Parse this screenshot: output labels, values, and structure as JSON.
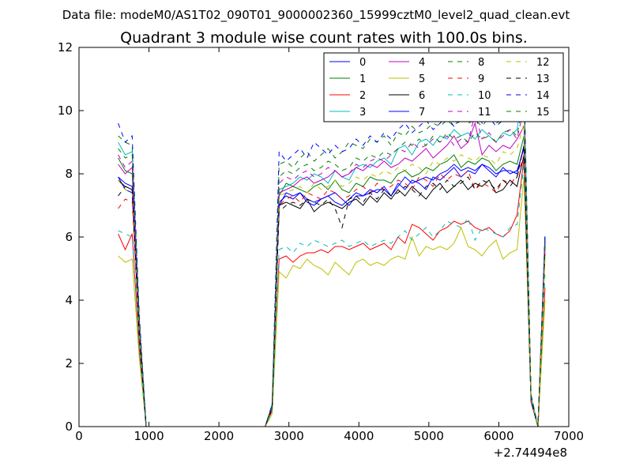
{
  "header": {
    "file_line": "Data file: modeM0/AS1T02_090T01_9000002360_15999cztM0_level2_quad_clean.evt"
  },
  "chart_data": {
    "type": "line",
    "title": "Quadrant 3 module wise count rates with 100.0s bins.",
    "xlabel": "",
    "ylabel": "",
    "x_offset_label": "+2.74494e8",
    "xlim": [
      0,
      7000
    ],
    "ylim": [
      0,
      12
    ],
    "x_ticks": [
      0,
      1000,
      2000,
      3000,
      4000,
      5000,
      6000,
      7000
    ],
    "y_ticks": [
      0,
      2,
      4,
      6,
      8,
      10,
      12
    ],
    "grid": false,
    "legend_placement": "top-right",
    "legend_columns": 4,
    "x": [
      560,
      660,
      760,
      860,
      960,
      1060,
      1160,
      1260,
      1360,
      1460,
      1560,
      1660,
      1760,
      1860,
      1960,
      2060,
      2160,
      2260,
      2360,
      2460,
      2560,
      2660,
      2760,
      2860,
      2960,
      3060,
      3160,
      3260,
      3360,
      3460,
      3560,
      3660,
      3760,
      3860,
      3960,
      4060,
      4160,
      4260,
      4360,
      4460,
      4560,
      4660,
      4760,
      4860,
      4960,
      5060,
      5160,
      5260,
      5360,
      5460,
      5560,
      5660,
      5760,
      5860,
      5960,
      6060,
      6160,
      6260,
      6360,
      6460,
      6560,
      6660
    ],
    "series": [
      {
        "name": "0",
        "color": "#0000ff",
        "dash": false,
        "values": [
          7.9,
          7.5,
          7.4,
          3.0,
          0.0,
          0.0,
          0.0,
          0.0,
          0.0,
          0.0,
          0.0,
          0.0,
          0.0,
          0.0,
          0.0,
          0.0,
          0.0,
          0.0,
          0.0,
          0.0,
          0.0,
          0.0,
          0.6,
          7.0,
          7.4,
          7.3,
          7.4,
          7.2,
          7.1,
          7.2,
          7.3,
          7.4,
          7.2,
          7.0,
          7.3,
          7.3,
          7.4,
          7.5,
          7.5,
          7.3,
          7.6,
          7.9,
          7.7,
          7.8,
          7.9,
          7.8,
          8.0,
          8.1,
          8.3,
          8.1,
          8.2,
          8.1,
          8.3,
          8.2,
          8.0,
          8.1,
          8.1,
          8.0,
          8.9,
          0.9,
          0.0,
          6.0
        ]
      },
      {
        "name": "1",
        "color": "#008000",
        "dash": false,
        "values": [
          8.5,
          8.1,
          8.0,
          3.1,
          0.0,
          0.0,
          0.0,
          0.0,
          0.0,
          0.0,
          0.0,
          0.0,
          0.0,
          0.0,
          0.0,
          0.0,
          0.0,
          0.0,
          0.0,
          0.0,
          0.0,
          0.0,
          0.6,
          7.3,
          7.7,
          7.6,
          7.5,
          7.4,
          7.6,
          7.7,
          7.5,
          7.8,
          7.5,
          7.4,
          7.7,
          7.6,
          7.9,
          7.8,
          7.8,
          7.7,
          8.0,
          8.1,
          7.9,
          8.0,
          8.2,
          8.1,
          8.3,
          8.4,
          8.6,
          8.2,
          8.4,
          8.3,
          8.5,
          8.4,
          8.1,
          8.3,
          8.4,
          8.3,
          9.2,
          0.9,
          0.0,
          5.8
        ]
      },
      {
        "name": "2",
        "color": "#ff0000",
        "dash": false,
        "values": [
          6.1,
          5.6,
          6.1,
          2.5,
          0.0,
          0.0,
          0.0,
          0.0,
          0.0,
          0.0,
          0.0,
          0.0,
          0.0,
          0.0,
          0.0,
          0.0,
          0.0,
          0.0,
          0.0,
          0.0,
          0.0,
          0.0,
          0.5,
          5.3,
          5.4,
          5.2,
          5.4,
          5.5,
          5.5,
          5.6,
          5.5,
          5.7,
          5.7,
          5.6,
          5.7,
          5.8,
          5.6,
          5.7,
          5.8,
          5.6,
          6.0,
          5.8,
          6.4,
          6.3,
          6.1,
          5.9,
          6.2,
          6.3,
          6.5,
          6.4,
          6.5,
          6.3,
          6.2,
          6.3,
          6.1,
          6.0,
          6.2,
          6.7,
          8.5,
          0.8,
          0.0,
          4.4
        ]
      },
      {
        "name": "3",
        "color": "#00bfbf",
        "dash": false,
        "values": [
          9.0,
          8.6,
          8.7,
          3.4,
          0.0,
          0.0,
          0.0,
          0.0,
          0.0,
          0.0,
          0.0,
          0.0,
          0.0,
          0.0,
          0.0,
          0.0,
          0.0,
          0.0,
          0.0,
          0.0,
          0.0,
          0.0,
          0.7,
          7.5,
          7.6,
          7.7,
          7.9,
          7.8,
          8.0,
          7.9,
          7.7,
          8.1,
          7.9,
          7.8,
          8.2,
          8.3,
          8.2,
          8.4,
          8.5,
          8.3,
          8.8,
          8.9,
          8.6,
          9.0,
          9.1,
          8.9,
          9.2,
          9.1,
          9.4,
          9.2,
          9.3,
          9.1,
          9.4,
          9.2,
          9.0,
          9.3,
          9.2,
          9.4,
          10.9,
          1.0,
          0.0,
          6.0
        ]
      },
      {
        "name": "4",
        "color": "#bf00bf",
        "dash": false,
        "values": [
          8.3,
          8.0,
          8.2,
          3.2,
          0.0,
          0.0,
          0.0,
          0.0,
          0.0,
          0.0,
          0.0,
          0.0,
          0.0,
          0.0,
          0.0,
          0.0,
          0.0,
          0.0,
          0.0,
          0.0,
          0.0,
          0.0,
          0.6,
          7.4,
          7.5,
          7.6,
          7.8,
          7.9,
          7.7,
          7.8,
          7.9,
          8.1,
          7.9,
          8.0,
          8.2,
          8.1,
          8.3,
          8.2,
          8.4,
          8.2,
          8.3,
          8.5,
          8.4,
          8.6,
          8.8,
          8.5,
          8.7,
          8.9,
          9.2,
          8.8,
          9.0,
          9.6,
          8.6,
          8.9,
          8.7,
          8.9,
          8.8,
          9.1,
          9.5,
          0.9,
          0.0,
          5.9
        ]
      },
      {
        "name": "5",
        "color": "#bfbf00",
        "dash": false,
        "values": [
          5.4,
          5.2,
          5.3,
          2.2,
          0.0,
          0.0,
          0.0,
          0.0,
          0.0,
          0.0,
          0.0,
          0.0,
          0.0,
          0.0,
          0.0,
          0.0,
          0.0,
          0.0,
          0.0,
          0.0,
          0.0,
          0.0,
          0.4,
          4.9,
          4.7,
          5.1,
          5.0,
          5.3,
          5.1,
          5.0,
          4.8,
          5.2,
          5.0,
          4.8,
          5.2,
          5.3,
          5.1,
          5.2,
          5.1,
          5.3,
          5.4,
          5.3,
          6.0,
          5.4,
          5.7,
          5.6,
          5.7,
          5.6,
          5.8,
          6.3,
          5.7,
          5.6,
          5.4,
          5.7,
          5.9,
          5.3,
          5.5,
          5.6,
          7.9,
          0.8,
          0.0,
          4.0
        ]
      },
      {
        "name": "6",
        "color": "#000000",
        "dash": false,
        "values": [
          7.8,
          7.6,
          7.5,
          3.0,
          0.0,
          0.0,
          0.0,
          0.0,
          0.0,
          0.0,
          0.0,
          0.0,
          0.0,
          0.0,
          0.0,
          0.0,
          0.0,
          0.0,
          0.0,
          0.0,
          0.0,
          0.0,
          0.6,
          7.0,
          7.1,
          7.0,
          6.9,
          7.2,
          6.8,
          7.0,
          7.1,
          7.0,
          6.9,
          7.1,
          7.2,
          7.0,
          7.3,
          7.1,
          7.4,
          7.2,
          7.5,
          7.3,
          7.6,
          7.4,
          7.2,
          7.5,
          7.7,
          7.4,
          7.6,
          7.8,
          7.5,
          7.7,
          7.6,
          7.8,
          7.4,
          7.5,
          7.8,
          7.6,
          8.6,
          0.8,
          0.0,
          5.7
        ]
      },
      {
        "name": "7",
        "color": "#0000ff",
        "dash": false,
        "values": [
          7.9,
          7.7,
          7.6,
          3.0,
          0.0,
          0.0,
          0.0,
          0.0,
          0.0,
          0.0,
          0.0,
          0.0,
          0.0,
          0.0,
          0.0,
          0.0,
          0.0,
          0.0,
          0.0,
          0.0,
          0.0,
          0.0,
          0.6,
          7.1,
          7.3,
          7.2,
          7.4,
          7.1,
          7.0,
          7.2,
          7.3,
          7.1,
          7.0,
          7.2,
          7.4,
          7.3,
          7.5,
          7.4,
          7.6,
          7.3,
          7.7,
          7.5,
          7.8,
          7.7,
          7.5,
          7.9,
          7.8,
          8.0,
          8.2,
          7.9,
          8.1,
          8.0,
          8.3,
          8.1,
          7.9,
          8.2,
          8.0,
          8.1,
          8.8,
          0.8,
          0.0,
          5.9
        ]
      },
      {
        "name": "8",
        "color": "#008000",
        "dash": true,
        "values": [
          9.2,
          9.0,
          8.9,
          3.5,
          0.0,
          0.0,
          0.0,
          0.0,
          0.0,
          0.0,
          0.0,
          0.0,
          0.0,
          0.0,
          0.0,
          0.0,
          0.0,
          0.0,
          0.0,
          0.0,
          0.0,
          0.0,
          0.7,
          8.3,
          8.4,
          8.2,
          8.5,
          8.7,
          8.4,
          8.6,
          8.8,
          8.5,
          8.7,
          9.0,
          8.9,
          8.8,
          9.1,
          9.0,
          9.2,
          8.9,
          9.3,
          9.2,
          9.5,
          9.3,
          9.4,
          9.6,
          9.5,
          9.7,
          9.5,
          9.8,
          9.6,
          9.7,
          9.5,
          9.8,
          9.6,
          9.7,
          9.9,
          9.8,
          11.0,
          1.0,
          0.0,
          6.0
        ]
      },
      {
        "name": "9",
        "color": "#ff0000",
        "dash": true,
        "values": [
          6.9,
          7.2,
          7.1,
          2.8,
          0.0,
          0.0,
          0.0,
          0.0,
          0.0,
          0.0,
          0.0,
          0.0,
          0.0,
          0.0,
          0.0,
          0.0,
          0.0,
          0.0,
          0.0,
          0.0,
          0.0,
          0.0,
          0.5,
          7.0,
          7.2,
          7.3,
          7.1,
          7.4,
          7.3,
          7.2,
          7.5,
          7.4,
          7.2,
          7.3,
          7.5,
          7.6,
          7.4,
          7.7,
          7.5,
          7.6,
          7.8,
          7.7,
          7.5,
          7.9,
          7.8,
          7.6,
          8.0,
          7.8,
          8.0,
          7.9,
          8.1,
          7.5,
          7.7,
          7.6,
          7.4,
          7.8,
          7.7,
          7.9,
          8.6,
          0.8,
          0.0,
          5.5
        ]
      },
      {
        "name": "10",
        "color": "#00bfbf",
        "dash": true,
        "values": [
          6.2,
          6.1,
          6.0,
          2.4,
          0.0,
          0.0,
          0.0,
          0.0,
          0.0,
          0.0,
          0.0,
          0.0,
          0.0,
          0.0,
          0.0,
          0.0,
          0.0,
          0.0,
          0.0,
          0.0,
          0.0,
          0.0,
          0.5,
          5.6,
          5.7,
          5.5,
          5.8,
          5.7,
          5.9,
          5.8,
          5.7,
          5.8,
          5.9,
          5.7,
          5.8,
          5.9,
          5.7,
          5.8,
          5.9,
          5.8,
          6.0,
          6.2,
          5.9,
          6.1,
          6.3,
          6.0,
          6.2,
          6.5,
          6.4,
          6.3,
          6.6,
          5.9,
          6.3,
          6.2,
          6.1,
          6.0,
          6.3,
          6.4,
          8.3,
          0.8,
          0.0,
          4.8
        ]
      },
      {
        "name": "11",
        "color": "#bf00bf",
        "dash": true,
        "values": [
          8.6,
          8.2,
          8.4,
          3.3,
          0.0,
          0.0,
          0.0,
          0.0,
          0.0,
          0.0,
          0.0,
          0.0,
          0.0,
          0.0,
          0.0,
          0.0,
          0.0,
          0.0,
          0.0,
          0.0,
          0.0,
          0.0,
          0.6,
          7.7,
          7.9,
          7.8,
          8.0,
          8.1,
          7.9,
          8.0,
          8.2,
          8.1,
          7.9,
          8.0,
          8.3,
          8.2,
          8.4,
          8.5,
          8.4,
          8.6,
          8.8,
          8.7,
          9.0,
          8.8,
          8.9,
          9.1,
          9.0,
          9.2,
          8.9,
          9.1,
          9.0,
          9.9,
          9.1,
          9.3,
          9.0,
          9.2,
          9.4,
          9.1,
          10.1,
          0.9,
          0.0,
          5.8
        ]
      },
      {
        "name": "12",
        "color": "#bfbf00",
        "dash": true,
        "values": [
          7.8,
          7.5,
          7.4,
          3.0,
          0.0,
          0.0,
          0.0,
          0.0,
          0.0,
          0.0,
          0.0,
          0.0,
          0.0,
          0.0,
          0.0,
          0.0,
          0.0,
          0.0,
          0.0,
          0.0,
          0.0,
          0.0,
          0.6,
          7.3,
          7.4,
          7.5,
          7.6,
          7.4,
          7.7,
          7.5,
          7.6,
          7.8,
          7.6,
          7.7,
          7.9,
          7.8,
          8.0,
          7.9,
          8.1,
          8.0,
          8.2,
          8.1,
          8.3,
          8.2,
          8.0,
          8.4,
          8.3,
          8.5,
          8.4,
          8.6,
          8.5,
          8.4,
          8.6,
          8.5,
          8.3,
          8.7,
          8.6,
          8.8,
          9.6,
          0.9,
          0.0,
          5.3
        ]
      },
      {
        "name": "13",
        "color": "#000000",
        "dash": true,
        "values": [
          7.3,
          7.6,
          7.5,
          2.9,
          0.0,
          0.0,
          0.0,
          0.0,
          0.0,
          0.0,
          0.0,
          0.0,
          0.0,
          0.0,
          0.0,
          0.0,
          0.0,
          0.0,
          0.0,
          0.0,
          0.0,
          0.0,
          0.6,
          6.8,
          7.0,
          7.1,
          7.0,
          7.2,
          7.1,
          7.0,
          7.2,
          6.9,
          6.3,
          7.2,
          7.3,
          7.1,
          7.4,
          7.2,
          7.5,
          7.3,
          7.4,
          7.6,
          7.5,
          7.3,
          7.6,
          7.7,
          7.5,
          7.8,
          7.6,
          7.7,
          7.9,
          7.5,
          7.8,
          7.7,
          7.5,
          7.8,
          7.6,
          7.9,
          8.9,
          0.8,
          0.0,
          5.6
        ]
      },
      {
        "name": "14",
        "color": "#0000ff",
        "dash": true,
        "values": [
          9.6,
          9.0,
          9.2,
          3.6,
          0.0,
          0.0,
          0.0,
          0.0,
          0.0,
          0.0,
          0.0,
          0.0,
          0.0,
          0.0,
          0.0,
          0.0,
          0.0,
          0.0,
          0.0,
          0.0,
          0.0,
          0.0,
          0.7,
          8.7,
          8.4,
          8.6,
          8.8,
          8.5,
          9.0,
          8.8,
          8.6,
          8.9,
          8.7,
          8.8,
          9.1,
          8.9,
          9.2,
          9.0,
          9.3,
          9.1,
          9.4,
          9.6,
          9.3,
          9.5,
          9.7,
          9.4,
          9.6,
          9.8,
          9.5,
          9.7,
          9.9,
          10.3,
          9.6,
          9.8,
          9.5,
          9.7,
          10.0,
          9.8,
          10.8,
          1.0,
          0.0,
          6.1
        ]
      },
      {
        "name": "15",
        "color": "#008000",
        "dash": true,
        "values": [
          8.8,
          8.5,
          8.6,
          3.4,
          0.0,
          0.0,
          0.0,
          0.0,
          0.0,
          0.0,
          0.0,
          0.0,
          0.0,
          0.0,
          0.0,
          0.0,
          0.0,
          0.0,
          0.0,
          0.0,
          0.0,
          0.0,
          0.6,
          7.9,
          8.1,
          8.0,
          8.2,
          8.3,
          8.1,
          8.2,
          8.4,
          8.3,
          8.1,
          8.2,
          8.5,
          8.4,
          8.6,
          8.5,
          8.7,
          8.6,
          8.8,
          9.0,
          8.9,
          9.1,
          8.9,
          9.2,
          9.0,
          9.3,
          9.1,
          9.2,
          9.0,
          9.3,
          9.1,
          9.2,
          9.0,
          9.3,
          9.4,
          9.2,
          10.4,
          0.9,
          0.0,
          5.9
        ]
      }
    ]
  }
}
